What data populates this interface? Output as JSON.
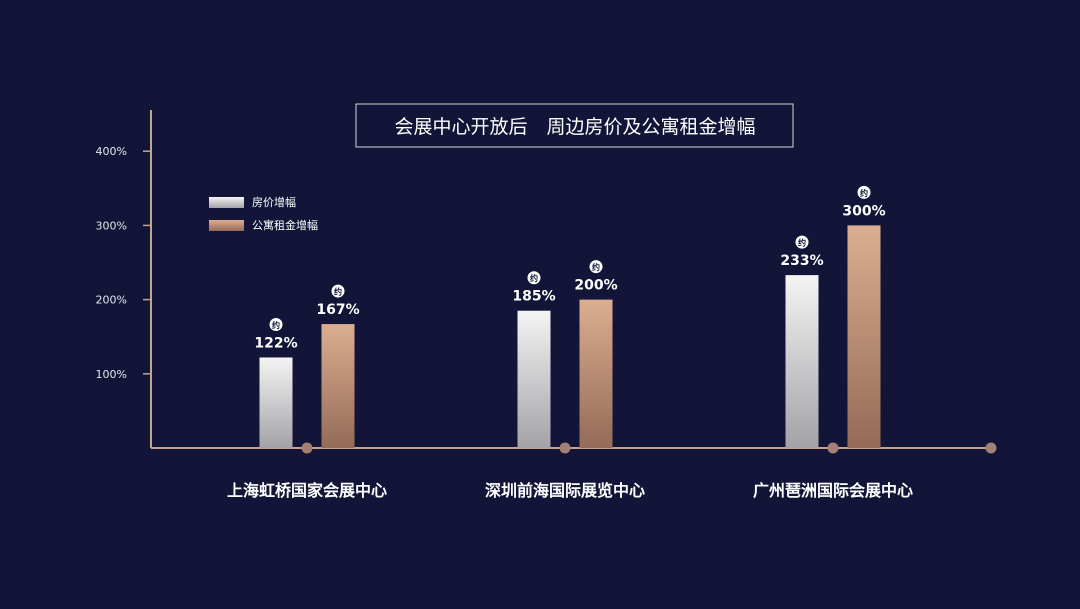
{
  "colors": {
    "background": "#121537",
    "axis": "#c8a291",
    "axis_dot": "#a37f74",
    "price_top": "#f4f4f4",
    "price_bottom": "#a3a3a7",
    "rent_top": "#dcae90",
    "rent_bottom": "#946b58",
    "text": "#ffffff",
    "tick_text": "#e6e6ea"
  },
  "chart_data": {
    "type": "bar",
    "title": "会展中心开放后　周边房价及公寓租金增幅",
    "categories": [
      "上海虹桥国家会展中心",
      "深圳前海国际展览中心",
      "广州琶洲国际会展中心"
    ],
    "series": [
      {
        "name": "房价增幅",
        "values": [
          122,
          185,
          233
        ]
      },
      {
        "name": "公寓租金增幅",
        "values": [
          167,
          200,
          300
        ]
      }
    ],
    "data_labels": [
      [
        "122%",
        "167%"
      ],
      [
        "185%",
        "200%"
      ],
      [
        "233%",
        "300%"
      ]
    ],
    "approx_marker": "约",
    "yticks": [
      "100%",
      "200%",
      "300%",
      "400%"
    ],
    "ytick_values": [
      100,
      200,
      300,
      400
    ],
    "ylim": [
      0,
      400
    ],
    "legend_position": "top-left",
    "grid": false
  }
}
